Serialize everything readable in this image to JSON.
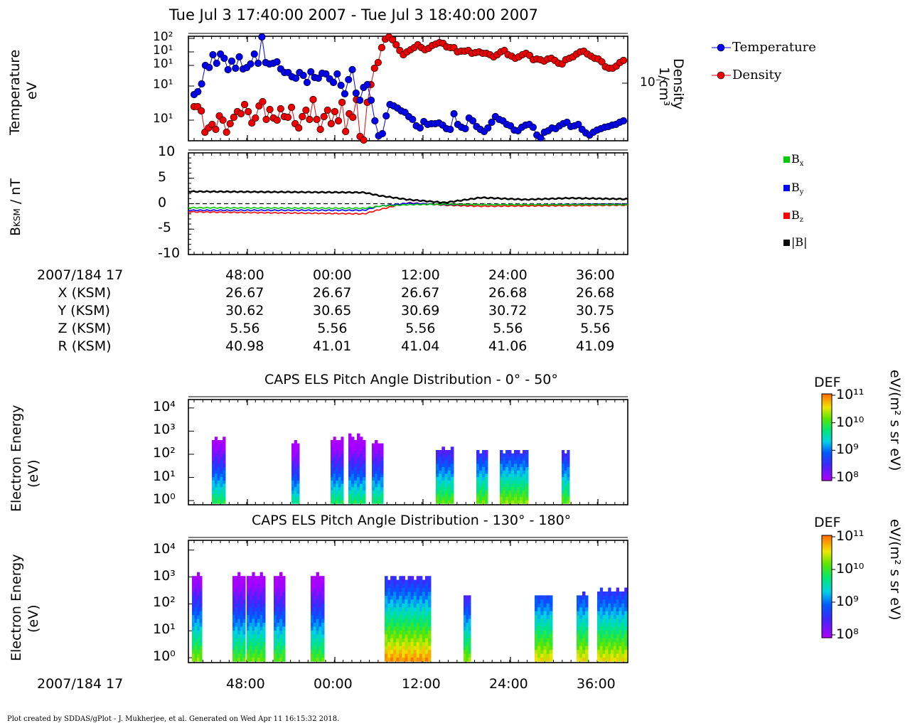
{
  "title": "Tue Jul 3 17:40:00 2007 - Tue Jul 3 18:40:00 2007",
  "footer": "Plot created by SDDAS/gPlot - J. Mukherjee, et al.  Generated on Wed Apr 11 16:15:32 2018.",
  "colors": {
    "temperature": "#0000ee",
    "density": "#ee0000",
    "bx": "#00cc00",
    "by": "#0000ff",
    "bz": "#ff0000",
    "btot": "#000000"
  },
  "panel1": {
    "ylabel_line1": "Temperature",
    "ylabel_line2": "eV",
    "y2label_line1": "Density",
    "y2label_line2": "1/cm³",
    "y2_tick": "10⁻²",
    "y_ticks": [
      "10²",
      "10¹",
      "10¹",
      "10¹",
      "10¹"
    ],
    "legend": [
      "Temperature",
      "Density"
    ]
  },
  "panel2": {
    "ylabel": "B",
    "ylabel_sub": "KSM",
    "ylabel_unit": " / nT",
    "y_ticks": [
      "10",
      "5",
      "0",
      "-5",
      "-10"
    ],
    "legend": [
      {
        "base": "B",
        "sub": "x",
        "color": "#00cc00"
      },
      {
        "base": "B",
        "sub": "y",
        "color": "#0000ff"
      },
      {
        "base": "B",
        "sub": "z",
        "color": "#ff0000"
      },
      {
        "base": "|B|",
        "sub": "",
        "color": "#000000"
      }
    ]
  },
  "ephemeris": {
    "rows": [
      {
        "label": "2007/184 17",
        "values": [
          "48:00",
          "00:00",
          "12:00",
          "24:00",
          "36:00"
        ]
      },
      {
        "label": "X (KSM)",
        "values": [
          "26.67",
          "26.67",
          "26.67",
          "26.68",
          "26.68"
        ]
      },
      {
        "label": "Y (KSM)",
        "values": [
          "30.62",
          "30.65",
          "30.69",
          "30.72",
          "30.75"
        ]
      },
      {
        "label": "Z (KSM)",
        "values": [
          "5.56",
          "5.56",
          "5.56",
          "5.56",
          "5.56"
        ]
      },
      {
        "label": "R (KSM)",
        "values": [
          "40.98",
          "41.01",
          "41.04",
          "41.06",
          "41.09"
        ]
      }
    ]
  },
  "spec1": {
    "title": "CAPS ELS Pitch Angle Distribution - 0° - 50°",
    "ylabel_line1": "Electron Energy",
    "ylabel_line2": "(eV)",
    "y_ticks": [
      "10⁴",
      "10³",
      "10²",
      "10¹",
      "10⁰"
    ],
    "colorbar_label": "DEF",
    "colorbar_unit": "eV/(m² s sr eV)",
    "colorbar_ticks": [
      "10¹¹",
      "10¹⁰",
      "10⁹",
      "10⁸"
    ]
  },
  "spec2": {
    "title": "CAPS ELS Pitch Angle Distribution - 130° - 180°",
    "ylabel_line1": "Electron Energy",
    "ylabel_line2": "(eV)",
    "y_ticks": [
      "10⁴",
      "10³",
      "10²",
      "10¹",
      "10⁰"
    ],
    "colorbar_label": "DEF",
    "colorbar_unit": "eV/(m² s sr eV)",
    "colorbar_ticks": [
      "10¹¹",
      "10¹⁰",
      "10⁹",
      "10⁸"
    ]
  },
  "bottom_axis": {
    "label": "2007/184 17",
    "ticks": [
      "48:00",
      "00:00",
      "12:00",
      "24:00",
      "36:00"
    ]
  },
  "chart_data": {
    "type": "line",
    "time_ticks": [
      "48:00",
      "00:00",
      "12:00",
      "24:00",
      "36:00"
    ],
    "magnetic_field": {
      "ylim": [
        -10,
        10
      ],
      "series": [
        {
          "name": "|B|",
          "minutes": [
            0,
            24,
            26,
            30,
            35,
            40,
            46,
            52,
            60
          ],
          "values": [
            2.4,
            2.2,
            1.6,
            0.8,
            0.2,
            1.2,
            0.8,
            1.1,
            0.9
          ]
        },
        {
          "name": "Bx",
          "minutes": [
            0,
            24,
            26,
            30,
            35,
            40,
            60
          ],
          "values": [
            -0.8,
            -0.9,
            -0.5,
            -0.2,
            -0.1,
            -0.2,
            -0.2
          ]
        },
        {
          "name": "By",
          "minutes": [
            0,
            24,
            26,
            30,
            35,
            40,
            60
          ],
          "values": [
            -1.3,
            -1.3,
            -0.5,
            0.1,
            -0.2,
            -0.2,
            -0.1
          ]
        },
        {
          "name": "Bz",
          "minutes": [
            0,
            24,
            26,
            30,
            35,
            40,
            60
          ],
          "values": [
            -1.6,
            -2.0,
            -1.2,
            0.2,
            -0.3,
            -0.5,
            -0.3
          ]
        }
      ]
    }
  }
}
